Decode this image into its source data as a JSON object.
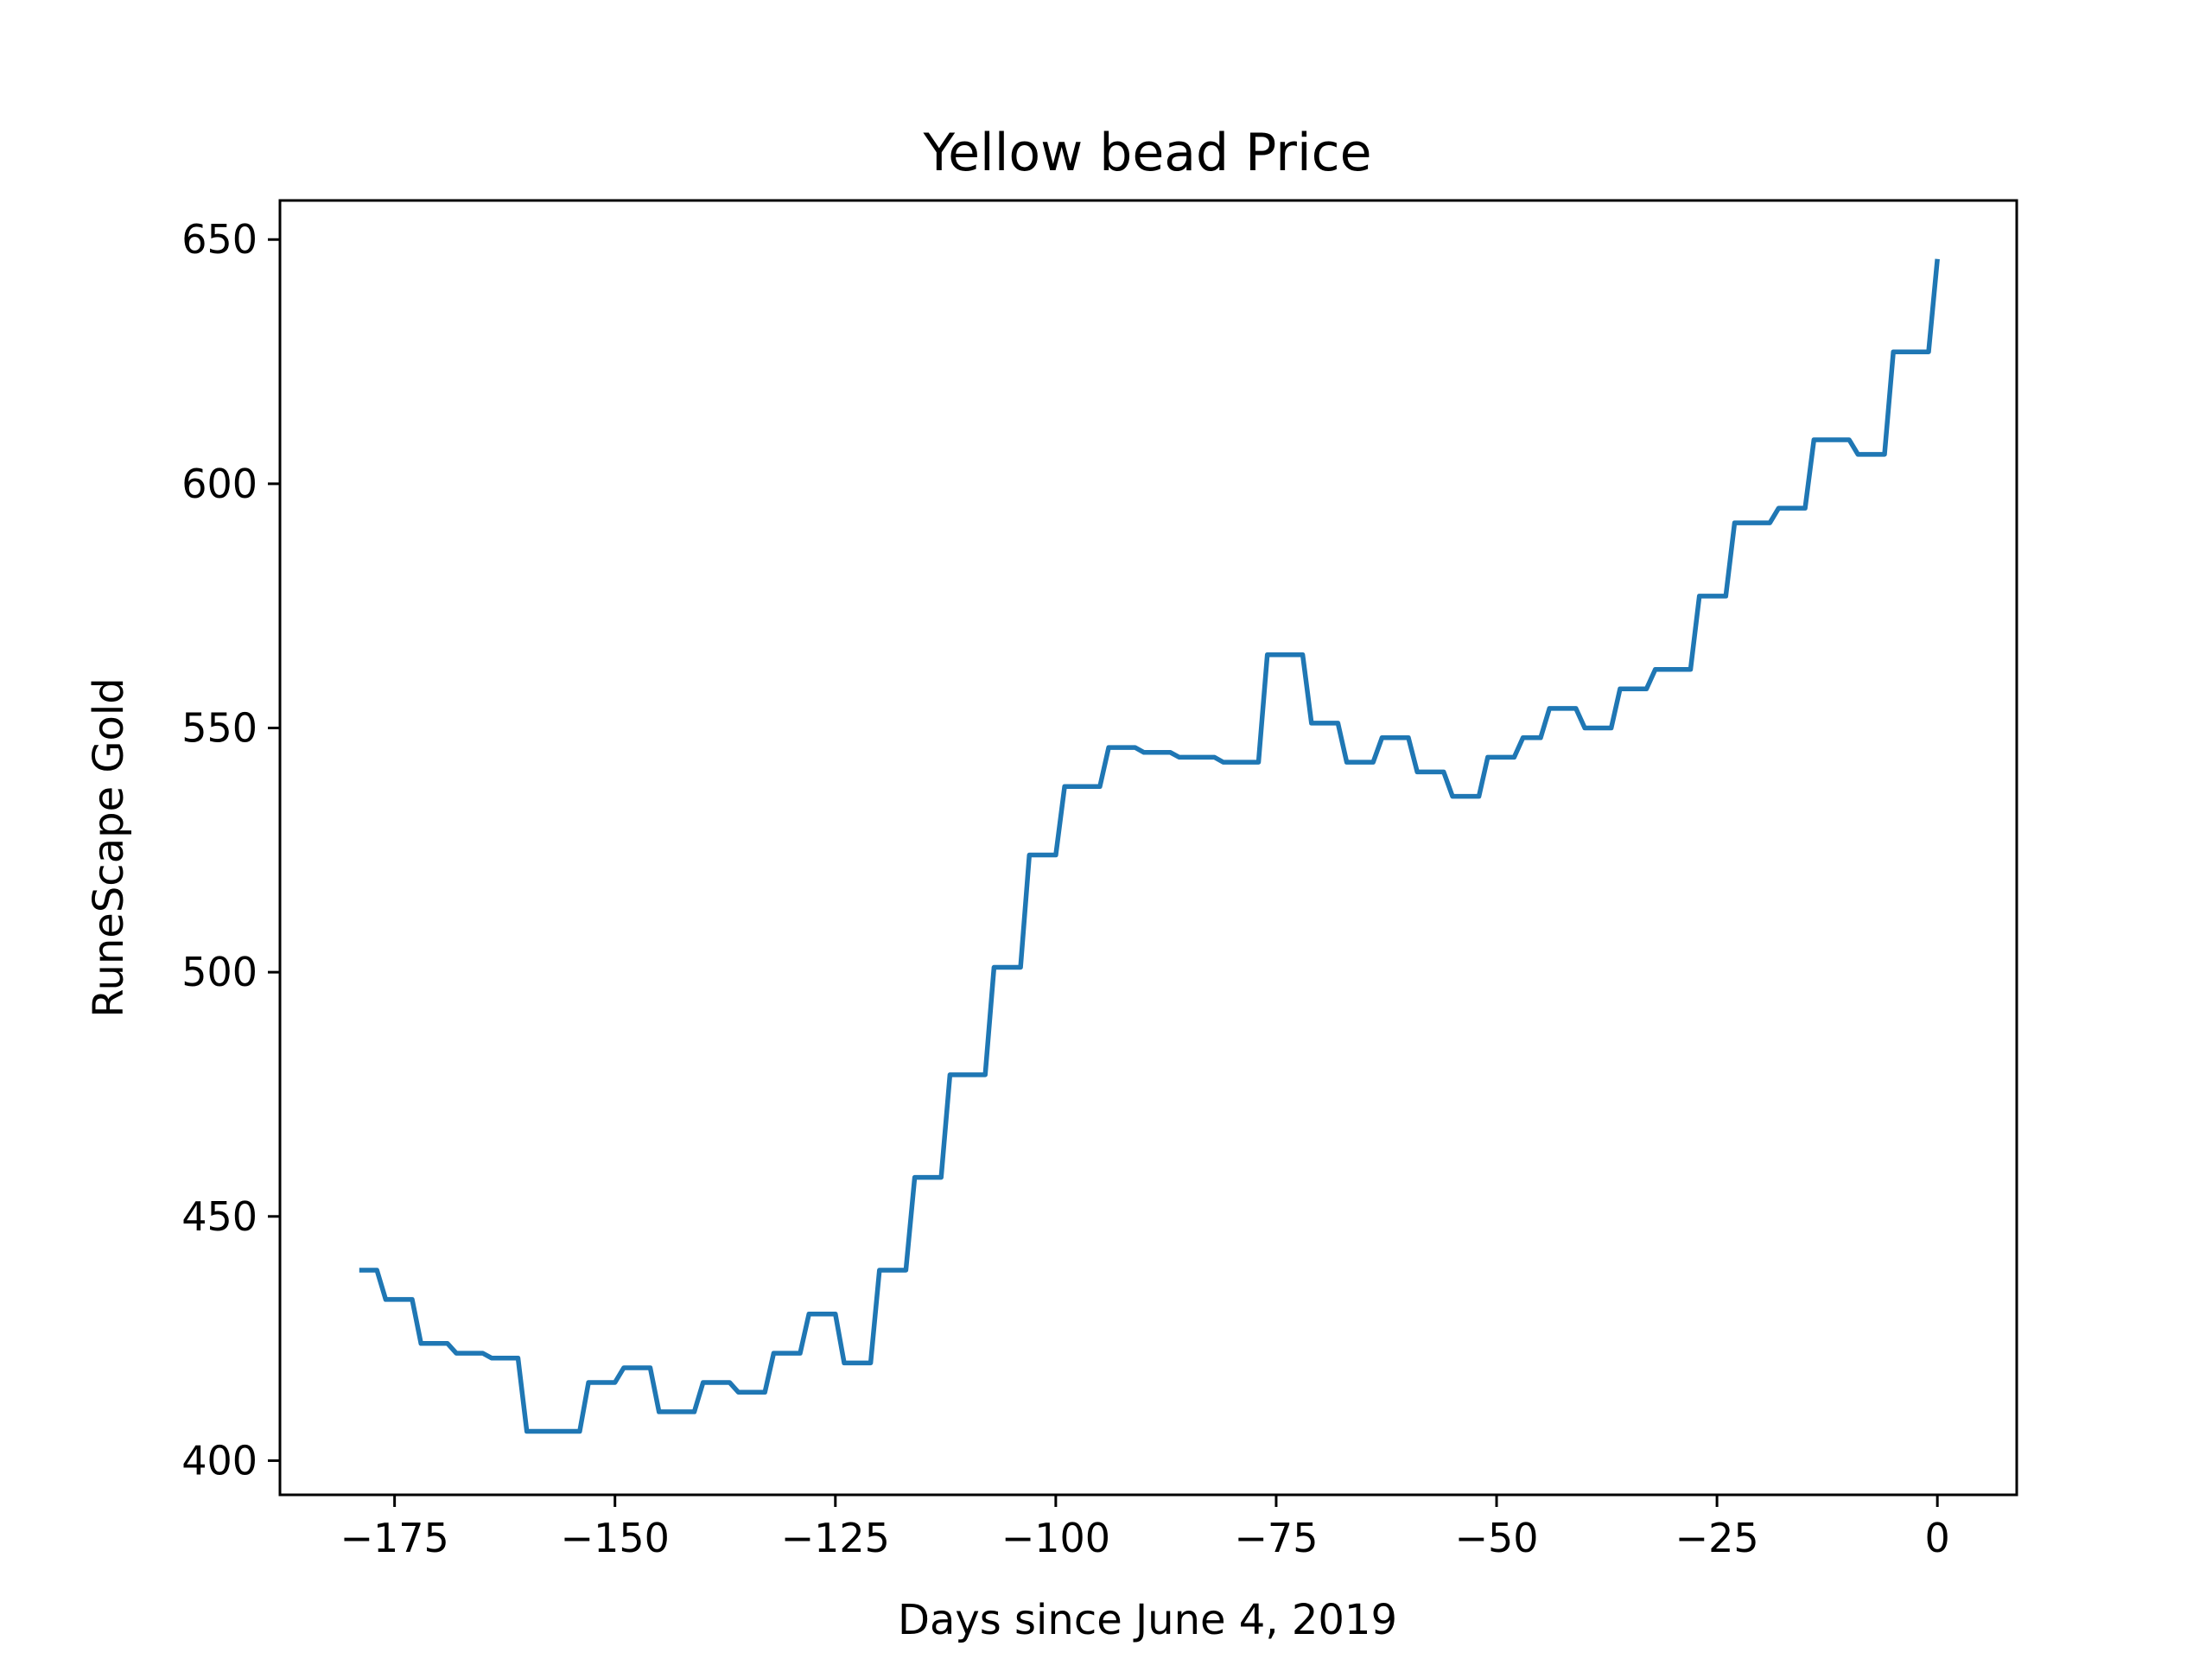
{
  "chart_data": {
    "type": "line",
    "title": "Yellow bead Price",
    "xlabel": "Days since June 4, 2019",
    "ylabel": "RuneScape Gold",
    "xlim": [
      -188,
      9
    ],
    "ylim": [
      393,
      658
    ],
    "grid": false,
    "x_ticks": [
      -175,
      -150,
      -125,
      -100,
      -75,
      -50,
      -25,
      0
    ],
    "x_tick_labels": [
      "−175",
      "−150",
      "−125",
      "−100",
      "−75",
      "−50",
      "−25",
      "0"
    ],
    "y_ticks": [
      400,
      450,
      500,
      550,
      600,
      650
    ],
    "y_tick_labels": [
      "400",
      "450",
      "500",
      "550",
      "600",
      "650"
    ],
    "series": [
      {
        "color": "#1f77b4",
        "points": [
          [
            -179,
            439
          ],
          [
            -177,
            439
          ],
          [
            -176,
            433
          ],
          [
            -173,
            433
          ],
          [
            -172,
            424
          ],
          [
            -169,
            424
          ],
          [
            -168,
            422
          ],
          [
            -165,
            422
          ],
          [
            -164,
            421
          ],
          [
            -161,
            421
          ],
          [
            -160,
            406
          ],
          [
            -154,
            406
          ],
          [
            -153,
            416
          ],
          [
            -150,
            416
          ],
          [
            -149,
            419
          ],
          [
            -146,
            419
          ],
          [
            -145,
            410
          ],
          [
            -141,
            410
          ],
          [
            -140,
            416
          ],
          [
            -137,
            416
          ],
          [
            -136,
            414
          ],
          [
            -133,
            414
          ],
          [
            -132,
            422
          ],
          [
            -129,
            422
          ],
          [
            -128,
            430
          ],
          [
            -125,
            430
          ],
          [
            -124,
            420
          ],
          [
            -121,
            420
          ],
          [
            -120,
            439
          ],
          [
            -117,
            439
          ],
          [
            -116,
            458
          ],
          [
            -113,
            458
          ],
          [
            -112,
            479
          ],
          [
            -108,
            479
          ],
          [
            -107,
            501
          ],
          [
            -104,
            501
          ],
          [
            -103,
            524
          ],
          [
            -100,
            524
          ],
          [
            -99,
            538
          ],
          [
            -95,
            538
          ],
          [
            -94,
            546
          ],
          [
            -91,
            546
          ],
          [
            -90,
            545
          ],
          [
            -87,
            545
          ],
          [
            -86,
            544
          ],
          [
            -82,
            544
          ],
          [
            -81,
            543
          ],
          [
            -77,
            543
          ],
          [
            -76,
            565
          ],
          [
            -72,
            565
          ],
          [
            -71,
            551
          ],
          [
            -68,
            551
          ],
          [
            -67,
            543
          ],
          [
            -64,
            543
          ],
          [
            -63,
            548
          ],
          [
            -60,
            548
          ],
          [
            -59,
            541
          ],
          [
            -56,
            541
          ],
          [
            -55,
            536
          ],
          [
            -52,
            536
          ],
          [
            -51,
            544
          ],
          [
            -48,
            544
          ],
          [
            -47,
            548
          ],
          [
            -45,
            548
          ],
          [
            -44,
            554
          ],
          [
            -41,
            554
          ],
          [
            -40,
            550
          ],
          [
            -37,
            550
          ],
          [
            -36,
            558
          ],
          [
            -33,
            558
          ],
          [
            -32,
            562
          ],
          [
            -28,
            562
          ],
          [
            -27,
            577
          ],
          [
            -24,
            577
          ],
          [
            -23,
            592
          ],
          [
            -19,
            592
          ],
          [
            -18,
            595
          ],
          [
            -15,
            595
          ],
          [
            -14,
            609
          ],
          [
            -10,
            609
          ],
          [
            -9,
            606
          ],
          [
            -6,
            606
          ],
          [
            -5,
            627
          ],
          [
            -1,
            627
          ],
          [
            0,
            646
          ]
        ]
      }
    ]
  }
}
